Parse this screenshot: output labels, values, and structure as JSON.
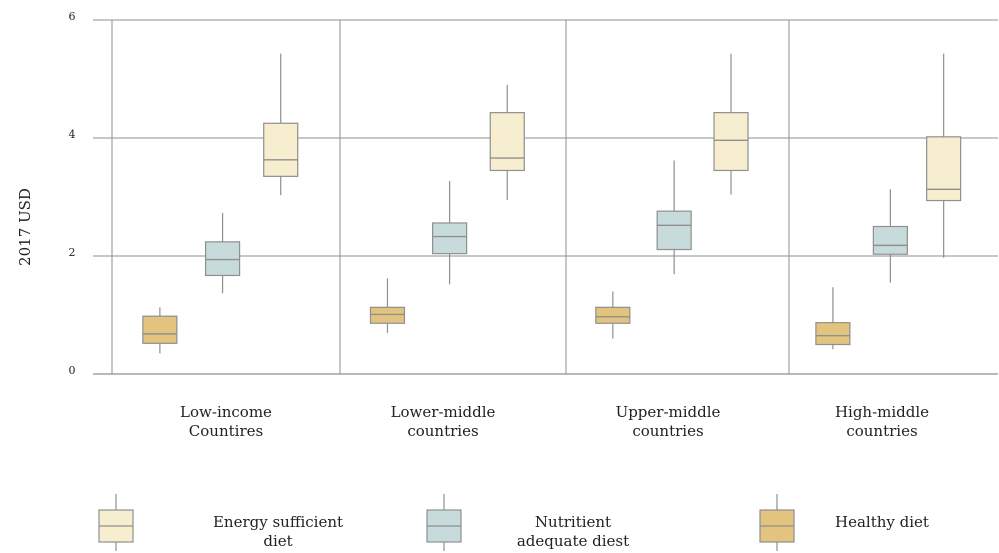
{
  "chart_data": {
    "type": "box",
    "ylabel": "2017 USD",
    "xlabel": "",
    "title": "",
    "ylim": [
      0,
      6
    ],
    "yticks": [
      "0",
      "2",
      "4",
      "6"
    ],
    "ytick_values": [
      0,
      2,
      4,
      6
    ],
    "categories": [
      [
        "Low-income",
        "Countires"
      ],
      [
        "Lower-middle",
        "countries"
      ],
      [
        "Upper-middle",
        "countries"
      ],
      [
        "High-middle",
        "countries"
      ]
    ],
    "series": [
      {
        "name": "Healthy diet",
        "color": "#e2c47e",
        "stroke": "#8f8f8f",
        "boxes": [
          {
            "min": 0.35,
            "q1": 0.52,
            "median": 0.68,
            "q3": 0.98,
            "max": 1.13
          },
          {
            "min": 0.7,
            "q1": 0.86,
            "median": 1.01,
            "q3": 1.13,
            "max": 1.62
          },
          {
            "min": 0.6,
            "q1": 0.86,
            "median": 0.97,
            "q3": 1.13,
            "max": 1.4
          },
          {
            "min": 0.42,
            "q1": 0.5,
            "median": 0.65,
            "q3": 0.87,
            "max": 1.47
          }
        ]
      },
      {
        "name": "Nutritient adequate diest",
        "color": "#c7dbdc",
        "stroke": "#8f8f8f",
        "boxes": [
          {
            "min": 1.37,
            "q1": 1.67,
            "median": 1.94,
            "q3": 2.24,
            "max": 2.73
          },
          {
            "min": 1.52,
            "q1": 2.04,
            "median": 2.33,
            "q3": 2.56,
            "max": 3.27
          },
          {
            "min": 1.69,
            "q1": 2.11,
            "median": 2.52,
            "q3": 2.76,
            "max": 3.62
          },
          {
            "min": 1.55,
            "q1": 2.03,
            "median": 2.18,
            "q3": 2.5,
            "max": 3.13
          }
        ]
      },
      {
        "name": "Energy sufficient diet",
        "color": "#f7eecf",
        "stroke": "#8f8f8f",
        "boxes": [
          {
            "min": 3.03,
            "q1": 3.35,
            "median": 3.63,
            "q3": 4.25,
            "max": 5.43
          },
          {
            "min": 2.95,
            "q1": 3.45,
            "median": 3.66,
            "q3": 4.43,
            "max": 4.9
          },
          {
            "min": 3.04,
            "q1": 3.45,
            "median": 3.96,
            "q3": 4.43,
            "max": 5.43
          },
          {
            "min": 1.97,
            "q1": 2.94,
            "median": 3.13,
            "q3": 4.02,
            "max": 5.43
          }
        ]
      }
    ],
    "legend": [
      {
        "lines": [
          "Energy sufficient",
          "diet"
        ],
        "color": "#f7eecf"
      },
      {
        "lines": [
          "Nutritient",
          "adequate diest"
        ],
        "color": "#c7dbdc"
      },
      {
        "lines": [
          "Healthy diet"
        ],
        "color": "#e2c47e"
      }
    ],
    "grid": true,
    "legend_position": "bottom"
  }
}
